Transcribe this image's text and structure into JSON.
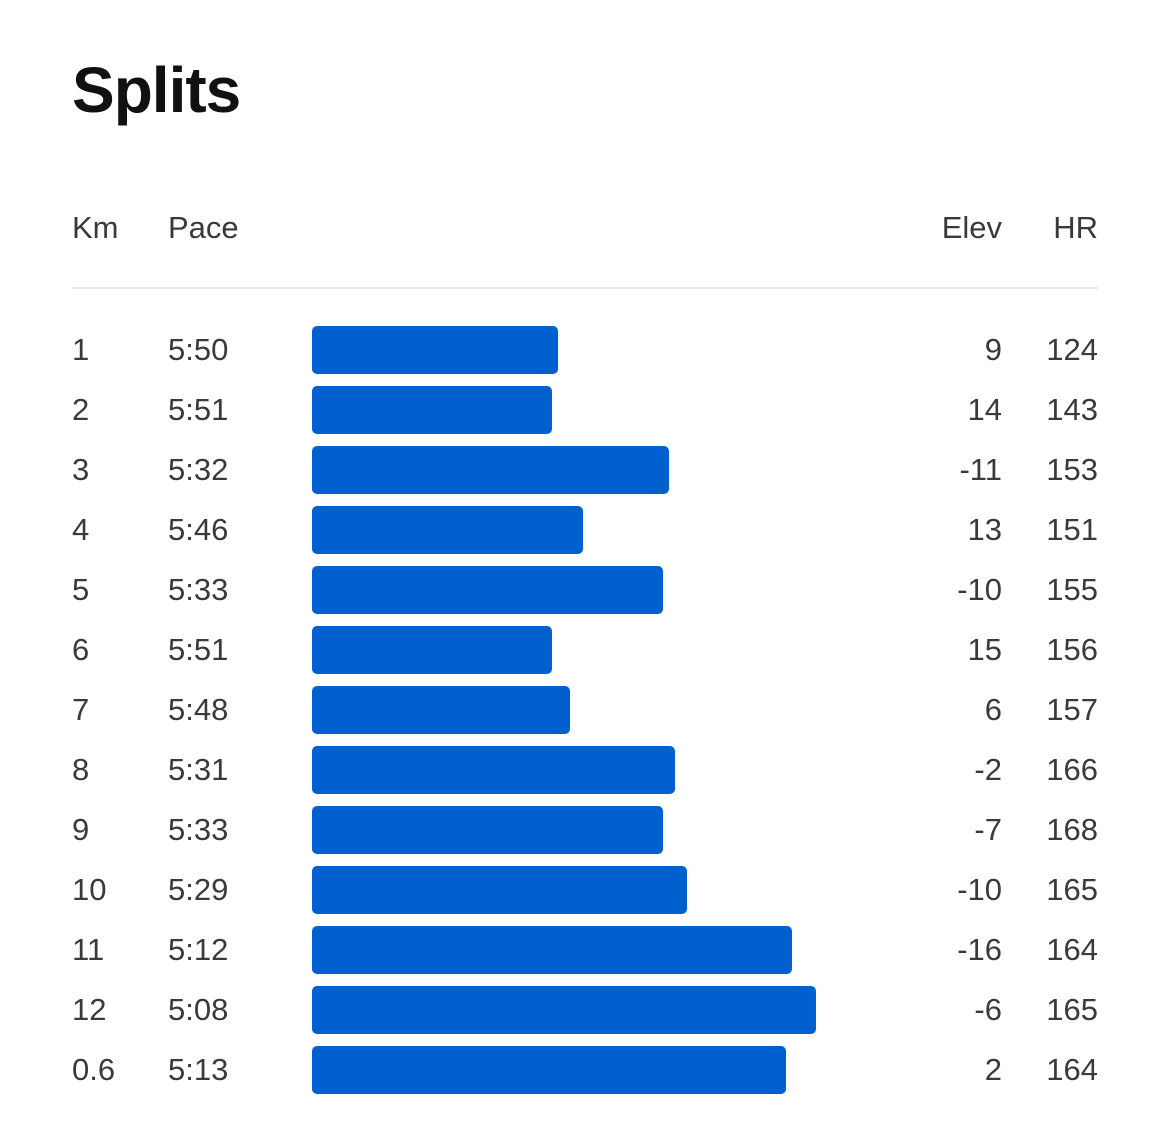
{
  "title": "Splits",
  "columns": {
    "km": "Km",
    "pace": "Pace",
    "elev": "Elev",
    "hr": "HR"
  },
  "colors": {
    "bar": "#0060d0",
    "divider": "#e4e4e6"
  },
  "rows": [
    {
      "km": "1",
      "pace": "5:50",
      "pace_seconds": 350,
      "elev": "9",
      "hr": "124"
    },
    {
      "km": "2",
      "pace": "5:51",
      "pace_seconds": 351,
      "elev": "14",
      "hr": "143"
    },
    {
      "km": "3",
      "pace": "5:32",
      "pace_seconds": 332,
      "elev": "-11",
      "hr": "153"
    },
    {
      "km": "4",
      "pace": "5:46",
      "pace_seconds": 346,
      "elev": "13",
      "hr": "151"
    },
    {
      "km": "5",
      "pace": "5:33",
      "pace_seconds": 333,
      "elev": "-10",
      "hr": "155"
    },
    {
      "km": "6",
      "pace": "5:51",
      "pace_seconds": 351,
      "elev": "15",
      "hr": "156"
    },
    {
      "km": "7",
      "pace": "5:48",
      "pace_seconds": 348,
      "elev": "6",
      "hr": "157"
    },
    {
      "km": "8",
      "pace": "5:31",
      "pace_seconds": 331,
      "elev": "-2",
      "hr": "166"
    },
    {
      "km": "9",
      "pace": "5:33",
      "pace_seconds": 333,
      "elev": "-7",
      "hr": "168"
    },
    {
      "km": "10",
      "pace": "5:29",
      "pace_seconds": 329,
      "elev": "-10",
      "hr": "165"
    },
    {
      "km": "11",
      "pace": "5:12",
      "pace_seconds": 312,
      "elev": "-16",
      "hr": "164"
    },
    {
      "km": "12",
      "pace": "5:08",
      "pace_seconds": 308,
      "elev": "-6",
      "hr": "165"
    },
    {
      "km": "0.6",
      "pace": "5:13",
      "pace_seconds": 313,
      "elev": "2",
      "hr": "164"
    }
  ]
}
